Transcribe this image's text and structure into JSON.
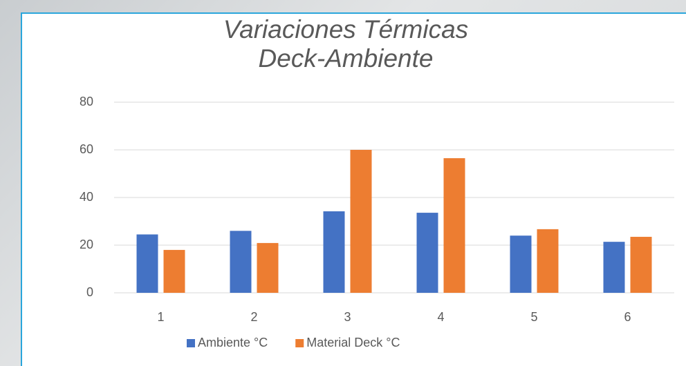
{
  "chart_data": {
    "type": "bar",
    "title": "Variaciones Térmicas Deck-Ambiente",
    "categories": [
      "1",
      "2",
      "3",
      "4",
      "5",
      "6"
    ],
    "series": [
      {
        "name": "Ambiente °C",
        "color": "#4472c4",
        "values": [
          24.5,
          26,
          34.2,
          33.6,
          24,
          21.4
        ]
      },
      {
        "name": "Material Deck °C",
        "color": "#ed7d31",
        "values": [
          18,
          20.9,
          60,
          56.5,
          26.7,
          23.5
        ]
      }
    ],
    "ylim": [
      0,
      80
    ],
    "yticks": [
      0,
      20,
      40,
      60,
      80
    ],
    "grid": true,
    "legend": "bottom"
  }
}
